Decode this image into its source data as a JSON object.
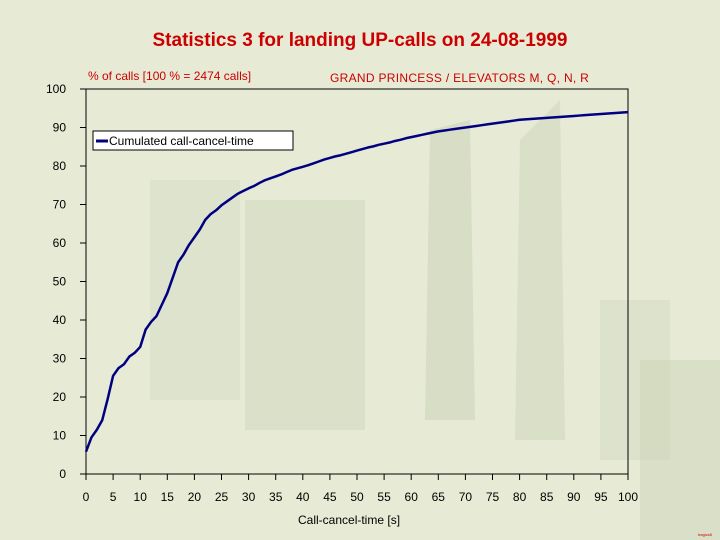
{
  "chart_data": {
    "type": "line",
    "title": "Statistics 3 for landing UP-calls on 24-08-1999",
    "ylabel": "% of calls [100 % = 2474 calls]",
    "subtitle": "GRAND PRINCESS / ELEVATORS M, Q, N, R",
    "xlabel": "Call-cancel-time [s]",
    "footer": "tragics5",
    "xlim": [
      0,
      100
    ],
    "ylim": [
      0,
      100
    ],
    "xticks": [
      0,
      5,
      10,
      15,
      20,
      25,
      30,
      35,
      40,
      45,
      50,
      55,
      60,
      65,
      70,
      75,
      80,
      85,
      90,
      95,
      100
    ],
    "yticks": [
      0,
      10,
      20,
      30,
      40,
      50,
      60,
      70,
      80,
      90,
      100
    ],
    "legend_position": "top-left",
    "grid": false,
    "series": [
      {
        "name": "Cumulated call-cancel-time",
        "color": "#000080",
        "x": [
          0,
          1,
          2,
          3,
          4,
          5,
          6,
          7,
          8,
          9,
          10,
          11,
          12,
          13,
          14,
          15,
          16,
          17,
          18,
          19,
          20,
          21,
          22,
          23,
          24,
          25,
          26,
          27,
          28,
          29,
          30,
          31,
          32,
          33,
          34,
          35,
          36,
          37,
          38,
          39,
          40,
          41,
          42,
          43,
          44,
          45,
          46,
          47,
          48,
          49,
          50,
          51,
          52,
          53,
          54,
          55,
          56,
          57,
          58,
          59,
          60,
          61,
          62,
          63,
          64,
          65,
          66,
          67,
          68,
          69,
          70,
          71,
          72,
          73,
          74,
          75,
          76,
          77,
          78,
          79,
          80,
          81,
          82,
          83,
          84,
          85,
          86,
          87,
          88,
          89,
          90,
          91,
          92,
          93,
          94,
          95,
          96,
          97,
          98,
          99,
          100
        ],
        "values": [
          5.8,
          9.5,
          11.5,
          14.0,
          19.5,
          25.5,
          27.5,
          28.5,
          30.5,
          31.5,
          33.0,
          37.5,
          39.5,
          41.0,
          44.0,
          47.0,
          51.0,
          55.0,
          57.0,
          59.5,
          61.5,
          63.5,
          66.0,
          67.5,
          68.5,
          69.8,
          70.8,
          71.8,
          72.8,
          73.5,
          74.2,
          74.8,
          75.6,
          76.3,
          76.8,
          77.3,
          77.8,
          78.4,
          79.0,
          79.4,
          79.8,
          80.2,
          80.7,
          81.2,
          81.7,
          82.1,
          82.5,
          82.8,
          83.2,
          83.6,
          84.0,
          84.4,
          84.8,
          85.1,
          85.5,
          85.8,
          86.1,
          86.5,
          86.8,
          87.2,
          87.5,
          87.8,
          88.1,
          88.4,
          88.7,
          89.0,
          89.2,
          89.4,
          89.6,
          89.8,
          90.0,
          90.2,
          90.4,
          90.6,
          90.8,
          91.0,
          91.2,
          91.4,
          91.6,
          91.8,
          92.0,
          92.1,
          92.2,
          92.3,
          92.4,
          92.5,
          92.6,
          92.7,
          92.8,
          92.9,
          93.0,
          93.1,
          93.2,
          93.3,
          93.4,
          93.5,
          93.6,
          93.7,
          93.8,
          93.9,
          94.0
        ]
      }
    ]
  }
}
